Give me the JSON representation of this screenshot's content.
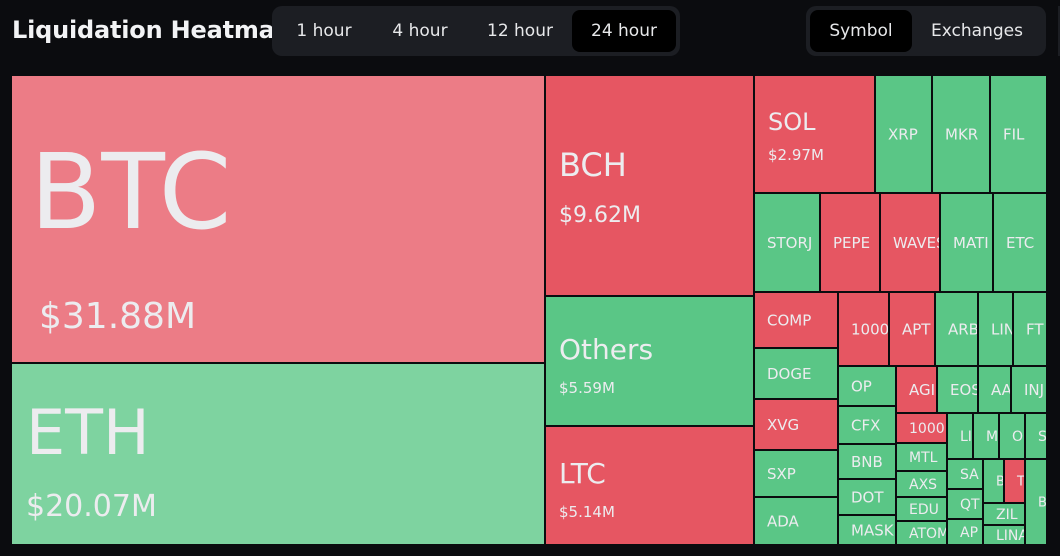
{
  "header": {
    "title": "Liquidation Heatmap",
    "time_tabs": [
      {
        "label": "1 hour",
        "active": false
      },
      {
        "label": "4 hour",
        "active": false
      },
      {
        "label": "12 hour",
        "active": false
      },
      {
        "label": "24 hour",
        "active": true
      }
    ],
    "view_tabs": [
      {
        "label": "Symbol",
        "active": true
      },
      {
        "label": "Exchanges",
        "active": false
      }
    ]
  },
  "colors": {
    "red": "#e65662",
    "red_light": "#ec7c86",
    "green": "#5ac686",
    "green_light": "#7ed3a0",
    "border": "#0b0c0f",
    "text": "#ececef"
  },
  "chart_data": {
    "type": "treemap",
    "title": "",
    "tiles": [
      {
        "symbol": "BTC",
        "value_label": "$31.88M",
        "value_musd": 31.88,
        "color": "red_light"
      },
      {
        "symbol": "ETH",
        "value_label": "$20.07M",
        "value_musd": 20.07,
        "color": "green_light"
      },
      {
        "symbol": "BCH",
        "value_label": "$9.62M",
        "value_musd": 9.62,
        "color": "red"
      },
      {
        "symbol": "Others",
        "value_label": "$5.59M",
        "value_musd": 5.59,
        "color": "green"
      },
      {
        "symbol": "LTC",
        "value_label": "$5.14M",
        "value_musd": 5.14,
        "color": "red"
      },
      {
        "symbol": "SOL",
        "value_label": "$2.97M",
        "value_musd": 2.97,
        "color": "red"
      },
      {
        "symbol": "XRP",
        "value_label": "",
        "color": "green"
      },
      {
        "symbol": "MKR",
        "value_label": "",
        "color": "green"
      },
      {
        "symbol": "FIL",
        "value_label": "",
        "color": "green"
      },
      {
        "symbol": "STORJ",
        "value_label": "",
        "color": "green"
      },
      {
        "symbol": "PEPE",
        "value_label": "",
        "color": "red"
      },
      {
        "symbol": "WAVES",
        "value_label": "",
        "color": "red"
      },
      {
        "symbol": "MATI",
        "value_label": "",
        "color": "green"
      },
      {
        "symbol": "ETC",
        "value_label": "",
        "color": "green"
      },
      {
        "symbol": "COMP",
        "value_label": "",
        "color": "red"
      },
      {
        "symbol": "DOGE",
        "value_label": "",
        "color": "green"
      },
      {
        "symbol": "XVG",
        "value_label": "",
        "color": "red"
      },
      {
        "symbol": "SXP",
        "value_label": "",
        "color": "green"
      },
      {
        "symbol": "ADA",
        "value_label": "",
        "color": "green"
      },
      {
        "symbol": "1000",
        "value_label": "",
        "color": "red"
      },
      {
        "symbol": "APT",
        "value_label": "",
        "color": "red"
      },
      {
        "symbol": "ARB",
        "value_label": "",
        "color": "green"
      },
      {
        "symbol": "LIN",
        "value_label": "",
        "color": "green"
      },
      {
        "symbol": "FT",
        "value_label": "",
        "color": "green"
      },
      {
        "symbol": "OP",
        "value_label": "",
        "color": "green"
      },
      {
        "symbol": "AGI",
        "value_label": "",
        "color": "red"
      },
      {
        "symbol": "EOS",
        "value_label": "",
        "color": "green"
      },
      {
        "symbol": "AA",
        "value_label": "",
        "color": "green"
      },
      {
        "symbol": "INJ",
        "value_label": "",
        "color": "green"
      },
      {
        "symbol": "CFX",
        "value_label": "",
        "color": "green"
      },
      {
        "symbol": "1000",
        "value_label": "",
        "color": "red"
      },
      {
        "symbol": "LI",
        "value_label": "",
        "color": "green"
      },
      {
        "symbol": "M",
        "value_label": "",
        "color": "green"
      },
      {
        "symbol": "O",
        "value_label": "",
        "color": "green"
      },
      {
        "symbol": "S",
        "value_label": "",
        "color": "green"
      },
      {
        "symbol": "BNB",
        "value_label": "",
        "color": "green"
      },
      {
        "symbol": "MTL",
        "value_label": "",
        "color": "green"
      },
      {
        "symbol": "SA",
        "value_label": "",
        "color": "green"
      },
      {
        "symbol": "B",
        "value_label": "",
        "color": "green"
      },
      {
        "symbol": "T",
        "value_label": "",
        "color": "red"
      },
      {
        "symbol": "AXS",
        "value_label": "",
        "color": "green"
      },
      {
        "symbol": "DOT",
        "value_label": "",
        "color": "green"
      },
      {
        "symbol": "EDU",
        "value_label": "",
        "color": "green"
      },
      {
        "symbol": "QT",
        "value_label": "",
        "color": "green"
      },
      {
        "symbol": "ZIL",
        "value_label": "",
        "color": "green"
      },
      {
        "symbol": "MASK",
        "value_label": "",
        "color": "green"
      },
      {
        "symbol": "ATOM",
        "value_label": "",
        "color": "green"
      },
      {
        "symbol": "AP",
        "value_label": "",
        "color": "green"
      },
      {
        "symbol": "LINA",
        "value_label": "",
        "color": "green"
      },
      {
        "symbol": "B",
        "value_label": "",
        "color": "green"
      }
    ]
  }
}
